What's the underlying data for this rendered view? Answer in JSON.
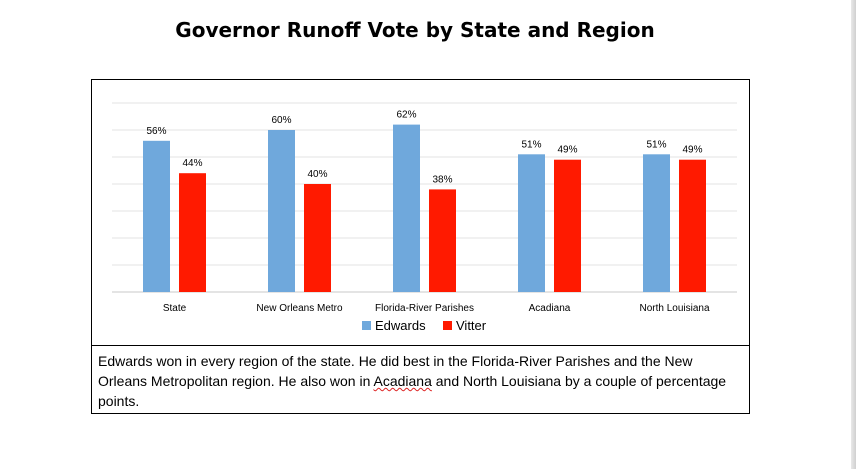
{
  "chart_data": {
    "type": "bar",
    "title": "Governor Runoff Vote by State and Region",
    "categories": [
      "State",
      "New Orleans Metro",
      "Florida-River Parishes",
      "Acadiana",
      "North Louisiana"
    ],
    "series": [
      {
        "name": "Edwards",
        "values": [
          56,
          60,
          62,
          51,
          51
        ],
        "labels": [
          "56%",
          "60%",
          "62%",
          "51%",
          "51%"
        ],
        "color": "#6fa8dc"
      },
      {
        "name": "Vitter",
        "values": [
          44,
          40,
          38,
          49,
          49
        ],
        "labels": [
          "44%",
          "40%",
          "38%",
          "49%",
          "49%"
        ],
        "color": "#ff1a00"
      }
    ],
    "ylim": [
      0,
      70
    ],
    "grid": true,
    "legend_position": "bottom"
  },
  "caption": {
    "before": "Edwards won in every region of the state. He did best in the Florida-River Parishes and the New Orleans Metropolitan region. He also won in ",
    "underlined": "Acadiana",
    "after": " and North Louisiana by a couple of percentage points."
  }
}
